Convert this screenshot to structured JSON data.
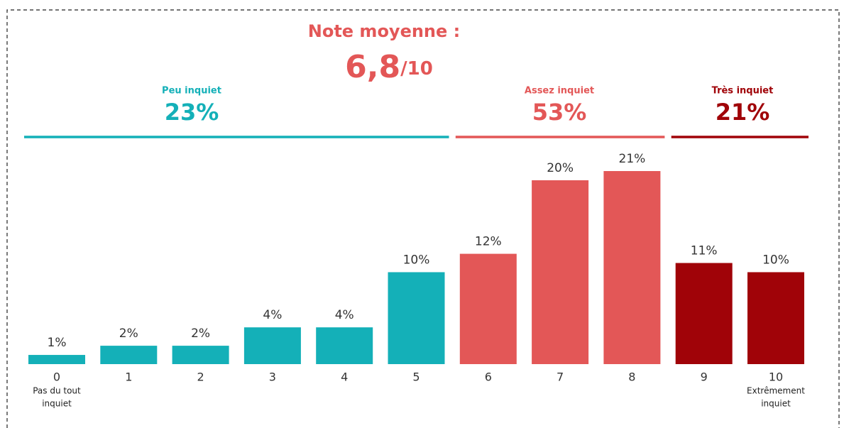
{
  "chart_data": {
    "type": "bar",
    "title": "Note moyenne :",
    "score": "6,8",
    "score_suffix": "/10",
    "categories": [
      "0",
      "1",
      "2",
      "3",
      "4",
      "5",
      "6",
      "7",
      "8",
      "9",
      "10"
    ],
    "category_notes": [
      [
        "Pas du tout",
        "inquiet"
      ],
      null,
      null,
      null,
      null,
      null,
      null,
      null,
      null,
      null,
      [
        "Extrêmement",
        "inquiet"
      ]
    ],
    "values": [
      1,
      2,
      2,
      4,
      4,
      10,
      12,
      20,
      21,
      11,
      10
    ],
    "value_labels": [
      "1%",
      "2%",
      "2%",
      "4%",
      "4%",
      "10%",
      "12%",
      "20%",
      "21%",
      "11%",
      "10%"
    ],
    "colors": [
      "#14b0b8",
      "#14b0b8",
      "#14b0b8",
      "#14b0b8",
      "#14b0b8",
      "#14b0b8",
      "#e35757",
      "#e35757",
      "#e35757",
      "#a00308",
      "#a00308"
    ],
    "groups": [
      {
        "name": "Peu inquiet",
        "value": 23,
        "value_label": "23%",
        "color": "#14b0b8"
      },
      {
        "name": "Assez inquiet",
        "value": 53,
        "value_label": "53%",
        "color": "#e35757"
      },
      {
        "name": "Très inquiet",
        "value": 21,
        "value_label": "21%",
        "color": "#a00308"
      }
    ]
  }
}
